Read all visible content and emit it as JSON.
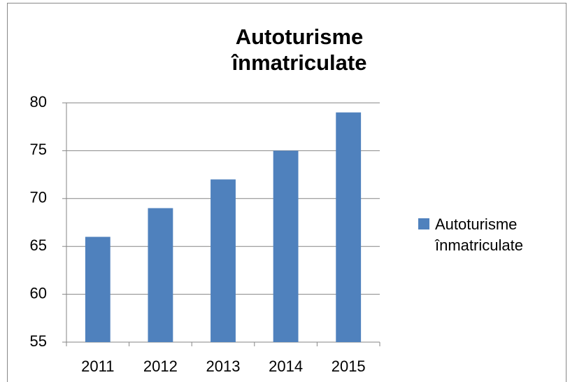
{
  "chart_data": {
    "type": "bar",
    "title": "Autoturisme înmatriculate",
    "categories": [
      "2011",
      "2012",
      "2013",
      "2014",
      "2015"
    ],
    "series": [
      {
        "name": "Autoturisme înmatriculate",
        "color": "#4f81bd",
        "values": [
          66,
          69,
          72,
          75,
          79
        ]
      }
    ],
    "ylim": [
      55,
      80
    ],
    "yticks": [
      55,
      60,
      65,
      70,
      75,
      80
    ],
    "grid": true,
    "legend": "right"
  }
}
